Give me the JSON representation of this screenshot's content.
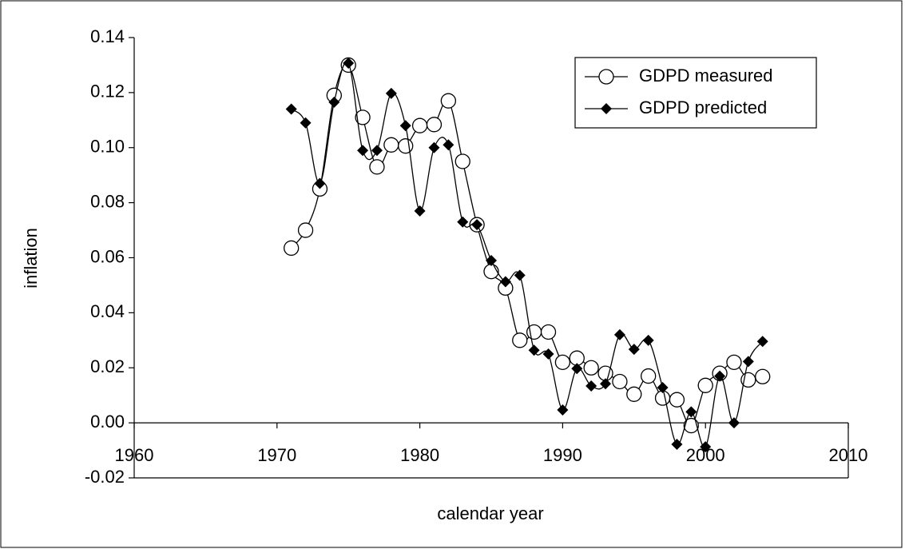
{
  "chart_data": {
    "type": "line",
    "x_label": "calendar year",
    "y_label": "inflation",
    "xlim": [
      1960,
      2010
    ],
    "xticks": [
      1960,
      1970,
      1980,
      1990,
      2000,
      2010
    ],
    "ylim": [
      -0.02,
      0.14
    ],
    "yticks": [
      -0.02,
      {
        "value": 0,
        "label": "0.00"
      },
      0.02,
      0.04,
      0.06,
      0.08,
      {
        "value": 0.1,
        "label": "0.10"
      },
      0.12,
      0.14
    ],
    "legend": "top right",
    "smooth": true,
    "x": [
      1971,
      1972,
      1973,
      1974,
      1975,
      1976,
      1977,
      1978,
      1979,
      1980,
      1981,
      1982,
      1983,
      1984,
      1985,
      1986,
      1987,
      1988,
      1989,
      1990,
      1991,
      1992,
      1993,
      1994,
      1995,
      1996,
      1997,
      1998,
      1999,
      2000,
      2001,
      2002,
      2003,
      2004
    ],
    "series": [
      {
        "name": "GDPD measured",
        "color": "#000000",
        "marker": "circle",
        "values": [
          0.0635,
          0.07,
          0.085,
          0.119,
          0.13,
          0.111,
          0.093,
          0.101,
          0.1006,
          0.108,
          0.1084,
          0.117,
          0.095,
          0.072,
          0.055,
          0.049,
          0.03,
          0.033,
          0.033,
          0.022,
          0.0235,
          0.02,
          0.018,
          0.015,
          0.0104,
          0.017,
          0.009,
          0.0084,
          -0.001,
          0.0136,
          0.018,
          0.022,
          0.0156,
          0.0168
        ]
      },
      {
        "name": "GDPD predicted",
        "color": "#000000",
        "marker": "diamond",
        "values": [
          0.114,
          0.109,
          0.087,
          0.1165,
          0.1307,
          0.099,
          0.099,
          0.1197,
          0.108,
          0.077,
          0.1,
          0.101,
          0.073,
          0.072,
          0.059,
          0.0513,
          0.0536,
          0.0264,
          0.025,
          0.0047,
          0.0197,
          0.0134,
          0.0142,
          0.032,
          0.0267,
          0.03,
          0.0128,
          -0.0078,
          0.004,
          -0.0087,
          0.017,
          0.0,
          0.0223,
          0.0296
        ]
      }
    ]
  }
}
